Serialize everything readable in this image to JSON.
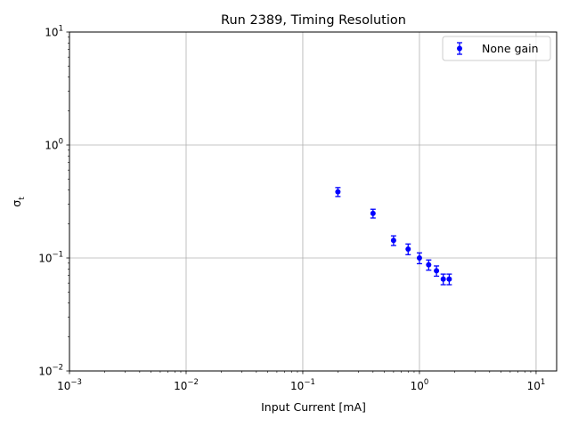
{
  "chart_data": {
    "type": "scatter",
    "title": "Run 2389, Timing Resolution",
    "xlabel": "Input Current [mA]",
    "ylabel": "σ",
    "ylabel_subscript": "t",
    "xscale": "log",
    "yscale": "log",
    "xlim": [
      0.001,
      15
    ],
    "ylim": [
      0.01,
      10
    ],
    "grid": true,
    "legend_position": "upper-right",
    "x_ticks": [
      {
        "value": 0.001,
        "base": "10",
        "exp": "−3"
      },
      {
        "value": 0.01,
        "base": "10",
        "exp": "−2"
      },
      {
        "value": 0.1,
        "base": "10",
        "exp": "−1"
      },
      {
        "value": 1,
        "base": "10",
        "exp": "0"
      },
      {
        "value": 10,
        "base": "10",
        "exp": "1"
      }
    ],
    "y_ticks": [
      {
        "value": 0.01,
        "base": "10",
        "exp": "−2"
      },
      {
        "value": 0.1,
        "base": "10",
        "exp": "−1"
      },
      {
        "value": 1,
        "base": "10",
        "exp": "0"
      },
      {
        "value": 10,
        "base": "10",
        "exp": "1"
      }
    ],
    "series": [
      {
        "name": "None gain",
        "color": "#0000ff",
        "x": [
          0.2,
          0.4,
          0.6,
          0.8,
          1.0,
          1.2,
          1.4,
          1.6,
          1.8
        ],
        "y": [
          0.385,
          0.248,
          0.143,
          0.12,
          0.1,
          0.087,
          0.077,
          0.065,
          0.065
        ],
        "yerr": [
          0.035,
          0.022,
          0.014,
          0.013,
          0.011,
          0.009,
          0.008,
          0.007,
          0.007
        ]
      }
    ]
  }
}
